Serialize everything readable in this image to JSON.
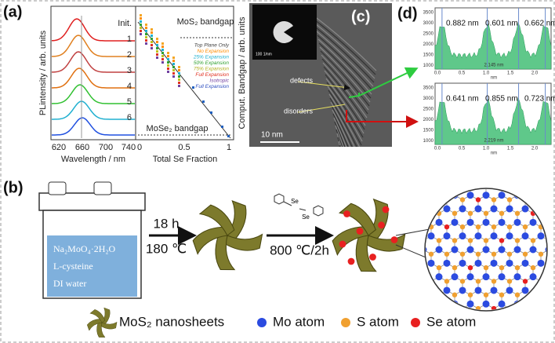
{
  "panel_a": {
    "label": "(a)",
    "pl_plot": {
      "y_label": "PLintensity / arb. units",
      "x_label": "Wavelength / nm",
      "x_ticks": [
        "620",
        "660",
        "700",
        "740"
      ],
      "curve_labels": [
        "Init.",
        "1",
        "2",
        "3",
        "4",
        "5",
        "6"
      ]
    },
    "bandgap_plot": {
      "y_label": "Comput. Bandgap / arb. units",
      "x_label": "Total Se Fraction",
      "x_ticks": [
        "0",
        "0.5",
        "1"
      ],
      "mos2_label": "MoS₂ bandgap",
      "mose2_label": "MoSe₂ bandgap",
      "legend": [
        "Top Plane Only",
        "No Expansion",
        "25% Expansion",
        "50% Expansion",
        "75% Expansion",
        "Full Expansion",
        "Isotropic",
        "Full Expansion"
      ]
    }
  },
  "panel_c": {
    "label": "(c)",
    "defects": "defects",
    "disorders": "disorders",
    "scale_bar": "10 nm",
    "inset_scale": "100 1/nm"
  },
  "panel_d": {
    "label": "(d)",
    "top": {
      "spacings": [
        "0.882 nm",
        "0.601 nm",
        "0.662 nm"
      ],
      "width": "2.145 nm"
    },
    "bottom": {
      "spacings": [
        "0.641 nm",
        "0.855 nm",
        "0.723 nm"
      ],
      "width": "2.219 nm"
    },
    "y_ticks": [
      "3500",
      "3000",
      "2500",
      "2000",
      "1500",
      "1000"
    ],
    "x_ticks": [
      "0.0",
      "0.5",
      "1.0",
      "1.5",
      "2.0"
    ],
    "x_unit": "nm"
  },
  "panel_b": {
    "label": "(b)",
    "solution": [
      "Na₂MoO₄·2H₂O",
      "L-cysteine",
      "DI water"
    ],
    "step1_time": "18 h",
    "step1_temp": "180 ℃",
    "step2": "800 ℃/2h",
    "reagent_atoms": [
      "Se",
      "Se"
    ]
  },
  "legend": [
    "MoS₂ nanosheets",
    "Mo atom",
    "S atom",
    "Se atom"
  ]
}
